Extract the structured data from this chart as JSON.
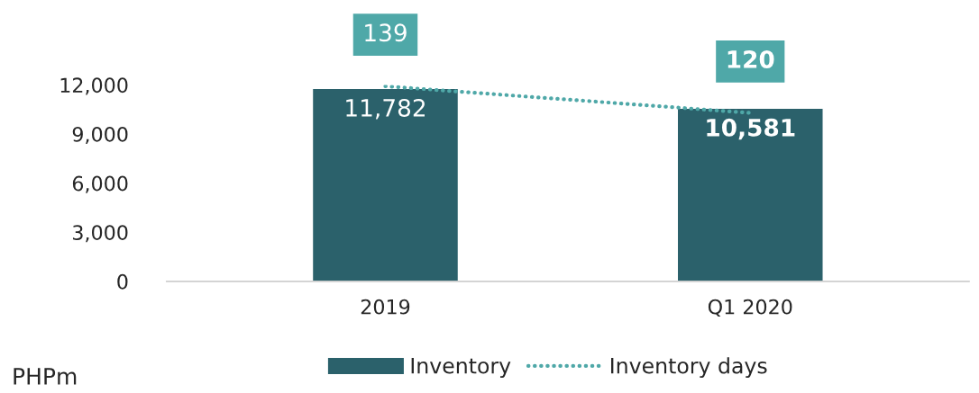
{
  "chart_data": {
    "type": "bar",
    "categories": [
      "2019",
      "Q1 2020"
    ],
    "series": [
      {
        "name": "Inventory",
        "color": "#2b616b",
        "values": [
          11782,
          10581
        ],
        "value_labels": [
          "11,782",
          "10,581"
        ]
      },
      {
        "name": "Inventory days",
        "type": "line",
        "axis": "y2",
        "color": "#4fa8a8",
        "values": [
          139,
          120
        ],
        "value_labels": [
          "139",
          "120"
        ],
        "line_style": "dotted",
        "marker": "none"
      }
    ],
    "ylim": [
      0,
      12000
    ],
    "yticks": [
      0,
      {
        "value": 3000,
        "label": "3,000"
      },
      {
        "value": 6000,
        "label": "6,000"
      },
      {
        "value": 9000,
        "label": "9,000"
      },
      {
        "value": 12000,
        "label": "12,000"
      }
    ],
    "tick_labels": "xy",
    "ylabel": "PHPm",
    "legend": "bottom",
    "grid": false
  }
}
